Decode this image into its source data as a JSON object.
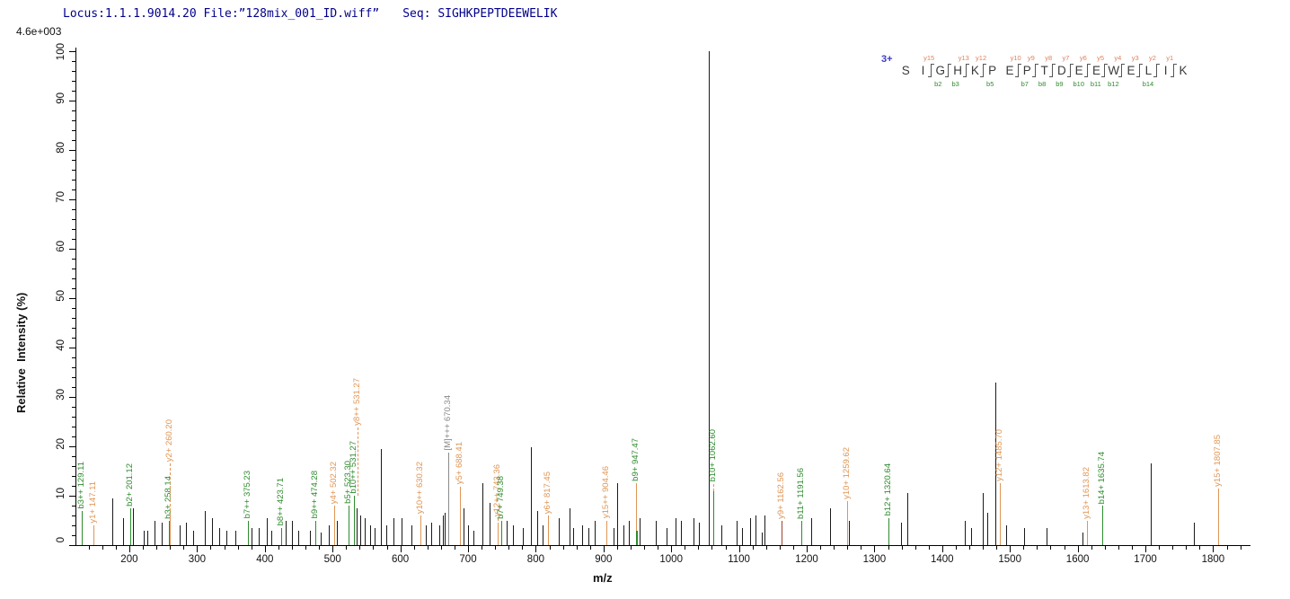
{
  "header": {
    "locus": "Locus:1.1.1.9014.20",
    "file": "File:”128mix_001_ID.wiff”",
    "seq_label": "Seq:",
    "seq": "SIGHKPEPTDEEWELIK"
  },
  "scale_label": "4.6e+003",
  "colors": {
    "header_text": "#00008C",
    "b_ion": "#2E8B2E",
    "y_ion": "#E09655",
    "y_ion_dark": "#9C4430",
    "precursor": "#8A8A8A",
    "unlabeled_peak": "#1A1A1A",
    "charge_label": "#3A3AC8",
    "axis": "#000000"
  },
  "chart_data": {
    "type": "bar",
    "subtype": "ms2-mass-spectrum",
    "title": "",
    "xlabel": "m/z",
    "ylabel": "Relative  Intensity (%)",
    "xlim": [
      120.5,
      1852.5
    ],
    "ylim": [
      0,
      100
    ],
    "x_major_ticks": [
      200,
      300,
      400,
      500,
      600,
      700,
      800,
      900,
      1000,
      1100,
      1200,
      1300,
      1400,
      1500,
      1600,
      1700,
      1800
    ],
    "x_minor_step": 20,
    "y_major_ticks": [
      0,
      10,
      20,
      30,
      40,
      50,
      60,
      70,
      80,
      90,
      100
    ],
    "y_minor_step": 2,
    "grid": false,
    "legend": "none",
    "labeled_peaks": [
      {
        "label": "b3++ 129.11",
        "mz": 129.11,
        "intensity": 7,
        "ion": "b"
      },
      {
        "label": "y1+ 147.11",
        "mz": 147.11,
        "intensity": 4,
        "ion": "y"
      },
      {
        "label": "b2+ 201.12",
        "mz": 201.12,
        "intensity": 7.5,
        "ion": "b"
      },
      {
        "label": "b3+ 258.14",
        "mz": 258.14,
        "intensity": 5,
        "ion": "b"
      },
      {
        "label": "y2+ 260.20",
        "mz": 260.2,
        "intensity": 6,
        "ion": "y",
        "lead": 58,
        "dashed": true
      },
      {
        "label": "b7++ 375.23",
        "mz": 375.23,
        "intensity": 5,
        "ion": "b"
      },
      {
        "label": "b8++ 423.71",
        "mz": 423.71,
        "intensity": 3.5,
        "ion": "b"
      },
      {
        "label": "b9++ 474.28",
        "mz": 474.28,
        "intensity": 5,
        "ion": "b"
      },
      {
        "label": "y4+ 502.32",
        "mz": 502.32,
        "intensity": 8,
        "ion": "y"
      },
      {
        "label": "b5+ 523.30",
        "mz": 523.3,
        "intensity": 8,
        "ion": "b"
      },
      {
        "label": "b10++ 531.27",
        "mz": 531.27,
        "intensity": 10,
        "ion": "b"
      },
      {
        "label": "y8++ 531.27",
        "mz": 531.27,
        "intensity": 10,
        "ion": "y",
        "lead": 76,
        "dashed": true,
        "dx": 4
      },
      {
        "label": "y10++ 630.32",
        "mz": 630.32,
        "intensity": 6,
        "ion": "y"
      },
      {
        "label": "[M]+++ 670.34",
        "mz": 670.34,
        "intensity": 6,
        "ion": "M",
        "lead": 70
      },
      {
        "label": "y5+ 688.41",
        "mz": 688.41,
        "intensity": 9,
        "ion": "y",
        "lead": 16
      },
      {
        "label": "y12++ 743.36",
        "mz": 743.36,
        "intensity": 4,
        "ion": "y",
        "lead": 8,
        "dashed": true
      },
      {
        "label": "b7+ 749.38",
        "mz": 749.38,
        "intensity": 5,
        "ion": "b"
      },
      {
        "label": "y6+ 817.45",
        "mz": 817.45,
        "intensity": 6,
        "ion": "y"
      },
      {
        "label": "y15++ 904.46",
        "mz": 904.46,
        "intensity": 5,
        "ion": "y"
      },
      {
        "label": "b9+ 947.47",
        "mz": 947.47,
        "intensity": 12.5,
        "ion": "b",
        "peak_color": "y",
        "base_h": 3
      },
      {
        "label": "b10+ 1062.60",
        "mz": 1062.6,
        "intensity": 11,
        "ion": "b",
        "lead": 8,
        "dashed": true,
        "lead_color": "y"
      },
      {
        "label": "y9+ 1162.56",
        "mz": 1162.56,
        "intensity": 5,
        "ion": "y",
        "peak_color": "dark"
      },
      {
        "label": "b11+ 1191.56",
        "mz": 1191.56,
        "intensity": 5,
        "ion": "b"
      },
      {
        "label": "y10+ 1259.62",
        "mz": 1259.62,
        "intensity": 9,
        "ion": "y"
      },
      {
        "label": "b12+ 1320.64",
        "mz": 1320.64,
        "intensity": 5.5,
        "ion": "b"
      },
      {
        "label": "y12+ 1485.70",
        "mz": 1485.7,
        "intensity": 12.5,
        "ion": "y"
      },
      {
        "label": "y13+ 1613.82",
        "mz": 1613.82,
        "intensity": 5,
        "ion": "y"
      },
      {
        "label": "b14+ 1635.74",
        "mz": 1635.74,
        "intensity": 8,
        "ion": "b"
      },
      {
        "label": "y15+ 1807.85",
        "mz": 1807.85,
        "intensity": 11.5,
        "ion": "y"
      }
    ],
    "unlabeled_peaks": [
      [
        175,
        9.5
      ],
      [
        191,
        5.5
      ],
      [
        205,
        7.5
      ],
      [
        221,
        3
      ],
      [
        227,
        3
      ],
      [
        237,
        5
      ],
      [
        248,
        4.5
      ],
      [
        274,
        4
      ],
      [
        284,
        4.5
      ],
      [
        294,
        3
      ],
      [
        311,
        7
      ],
      [
        322,
        5.5
      ],
      [
        333,
        3.5
      ],
      [
        343,
        3
      ],
      [
        356,
        3
      ],
      [
        380,
        3.5
      ],
      [
        391,
        3.5
      ],
      [
        403,
        5.5
      ],
      [
        410,
        3
      ],
      [
        431,
        5
      ],
      [
        440,
        5
      ],
      [
        449,
        3
      ],
      [
        467,
        3
      ],
      [
        482,
        2.5
      ],
      [
        495,
        4
      ],
      [
        507,
        5
      ],
      [
        536,
        7.5
      ],
      [
        541,
        6
      ],
      [
        548,
        5.5
      ],
      [
        555,
        4
      ],
      [
        562,
        3.5
      ],
      [
        571,
        19.5
      ],
      [
        579,
        4
      ],
      [
        590,
        5.5
      ],
      [
        602,
        5.5
      ],
      [
        616,
        4
      ],
      [
        638,
        4
      ],
      [
        646,
        4.5
      ],
      [
        658,
        4
      ],
      [
        663,
        6
      ],
      [
        666,
        6.5
      ],
      [
        693,
        7.5
      ],
      [
        700,
        4
      ],
      [
        708,
        3
      ],
      [
        721,
        12.5
      ],
      [
        732,
        8.5
      ],
      [
        757,
        5
      ],
      [
        766,
        4
      ],
      [
        781,
        3.5
      ],
      [
        793,
        19.8
      ],
      [
        802,
        7
      ],
      [
        810,
        4
      ],
      [
        834,
        5.5
      ],
      [
        850,
        7.5
      ],
      [
        855,
        3.5
      ],
      [
        868,
        4
      ],
      [
        878,
        3.5
      ],
      [
        887,
        5
      ],
      [
        915,
        3.5
      ],
      [
        920,
        12.5
      ],
      [
        929,
        4
      ],
      [
        937,
        5
      ],
      [
        953,
        5.5
      ],
      [
        977,
        5
      ],
      [
        993,
        3.5
      ],
      [
        1006,
        5.5
      ],
      [
        1014,
        5
      ],
      [
        1033,
        5.5
      ],
      [
        1041,
        4.5
      ],
      [
        1056,
        100
      ],
      [
        1074,
        4
      ],
      [
        1096,
        5
      ],
      [
        1105,
        3.5
      ],
      [
        1117,
        5.5
      ],
      [
        1124,
        6
      ],
      [
        1133,
        2.5
      ],
      [
        1137,
        6
      ],
      [
        1207,
        5.5
      ],
      [
        1235,
        7.5
      ],
      [
        1262,
        5
      ],
      [
        1339,
        4.5
      ],
      [
        1348,
        10.5
      ],
      [
        1434,
        5
      ],
      [
        1443,
        3.5
      ],
      [
        1460,
        10.5
      ],
      [
        1467,
        6.5
      ],
      [
        1478,
        33
      ],
      [
        1494,
        4
      ],
      [
        1521,
        3.5
      ],
      [
        1554,
        3.5
      ],
      [
        1607,
        2.5
      ],
      [
        1708,
        16.5
      ],
      [
        1772,
        4.5
      ]
    ]
  },
  "annotation": {
    "charge": "3+",
    "residues": [
      {
        "aa": "S"
      },
      {
        "aa": "I"
      },
      {
        "aa": "G",
        "y": "y15",
        "b": "b2"
      },
      {
        "aa": "H",
        "b": "b3"
      },
      {
        "aa": "K",
        "y": "y13"
      },
      {
        "aa": "P",
        "y": "y12",
        "b": "b5"
      },
      {
        "aa": "E"
      },
      {
        "aa": "P",
        "y": "y10",
        "b": "b7"
      },
      {
        "aa": "T",
        "y": "y9",
        "b": "b8"
      },
      {
        "aa": "D",
        "y": "y8",
        "b": "b9"
      },
      {
        "aa": "E",
        "y": "y7",
        "b": "b10"
      },
      {
        "aa": "E",
        "y": "y6",
        "b": "b11"
      },
      {
        "aa": "W",
        "y": "y5",
        "b": "b12"
      },
      {
        "aa": "E",
        "y": "y4"
      },
      {
        "aa": "L",
        "y": "y3",
        "b": "b14"
      },
      {
        "aa": "I",
        "y": "y2"
      },
      {
        "aa": "K",
        "y": "y1"
      }
    ]
  }
}
